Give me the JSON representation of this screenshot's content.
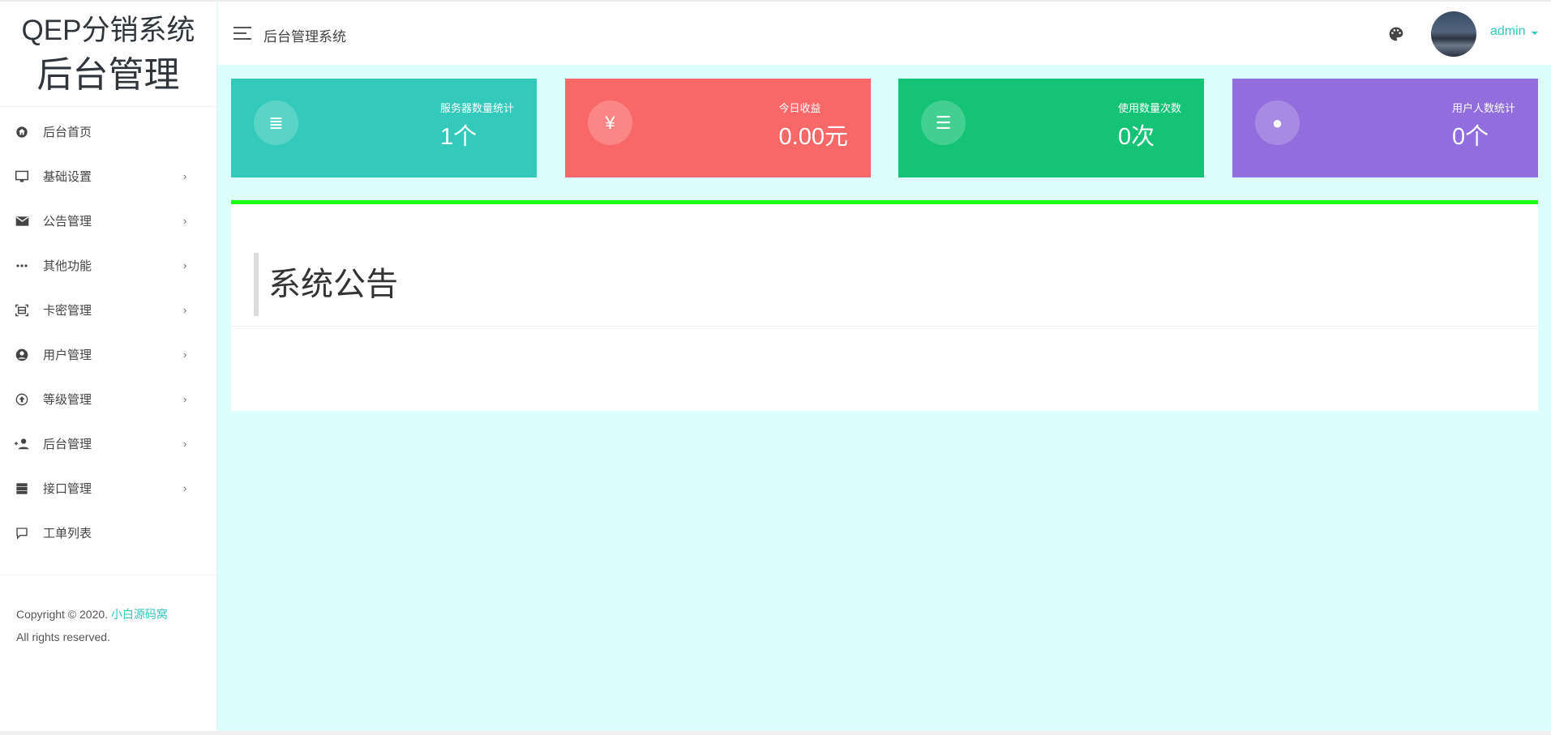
{
  "sidebar": {
    "logo_line1": "QEP分销系统",
    "logo_line2": "后台管理",
    "items": [
      {
        "label": "后台首页",
        "icon": "home-icon",
        "has_children": false
      },
      {
        "label": "基础设置",
        "icon": "monitor-icon",
        "has_children": true
      },
      {
        "label": "公告管理",
        "icon": "mail-icon",
        "has_children": true
      },
      {
        "label": "其他功能",
        "icon": "more-icon",
        "has_children": true
      },
      {
        "label": "卡密管理",
        "icon": "scan-icon",
        "has_children": true
      },
      {
        "label": "用户管理",
        "icon": "user-circle-icon",
        "has_children": true
      },
      {
        "label": "等级管理",
        "icon": "arrow-up-circle-icon",
        "has_children": true
      },
      {
        "label": "后台管理",
        "icon": "user-add-icon",
        "has_children": true
      },
      {
        "label": "接口管理",
        "icon": "server-icon",
        "has_children": true
      },
      {
        "label": "工单列表",
        "icon": "comment-icon",
        "has_children": false
      }
    ],
    "chevron": "›",
    "footer": {
      "copyright": "Copyright © 2020.",
      "link": "小白源码窝",
      "rights": "All rights reserved."
    }
  },
  "header": {
    "title": "后台管理系统",
    "user": "admin"
  },
  "cards": [
    {
      "label": "服务器数量统计",
      "value": "1个",
      "icon": "list-icon",
      "glyph": "≣",
      "color": "#33cabb"
    },
    {
      "label": "今日收益",
      "value": "0.00元",
      "icon": "yen-icon",
      "glyph": "¥",
      "color": "#f96868"
    },
    {
      "label": "使用数量次数",
      "value": "0次",
      "icon": "bullet-list-icon",
      "glyph": "☰",
      "color": "#15c377"
    },
    {
      "label": "用户人数统计",
      "value": "0个",
      "icon": "user-circle-icon",
      "glyph": "●",
      "color": "#926dde"
    }
  ],
  "panel": {
    "title": "系统公告",
    "accent": "#1aff1a"
  }
}
